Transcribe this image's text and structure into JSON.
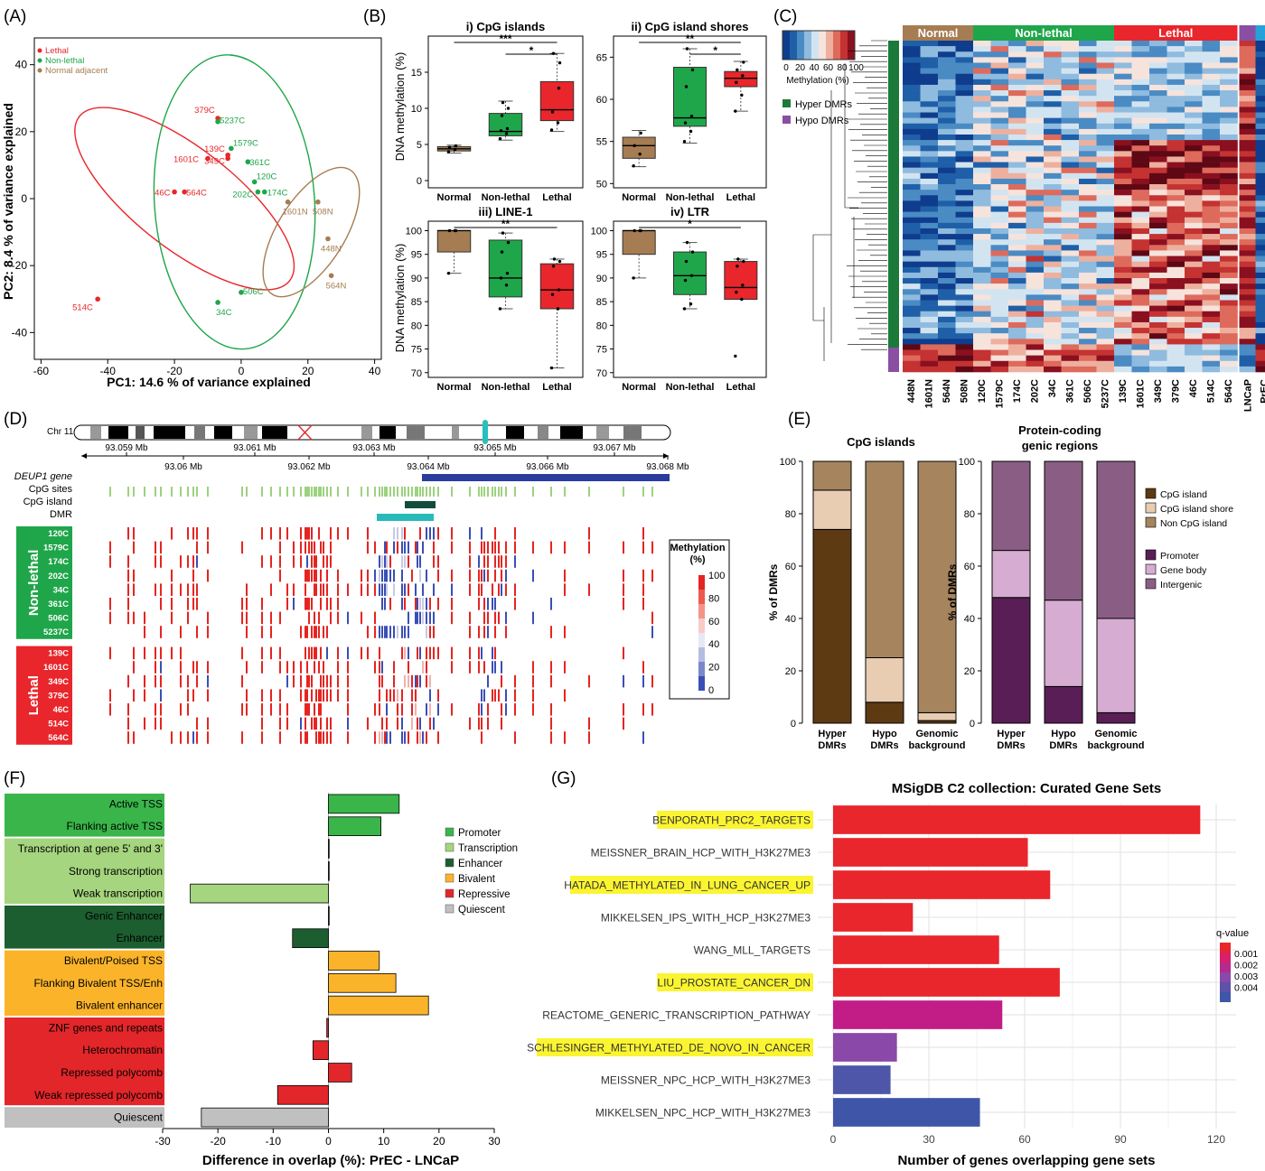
{
  "panels": {
    "A": {
      "label": "(A)",
      "xlabel": "PC1: 14.6 % of variance explained",
      "ylabel": "PC2: 8.4 % of variance explained",
      "xticks": [
        -60,
        -40,
        -20,
        0,
        20,
        40
      ],
      "yticks": [
        -40,
        -20,
        0,
        20,
        40
      ],
      "xlim": [
        -62,
        42
      ],
      "ylim": [
        -48,
        48
      ],
      "legend": [
        {
          "label": "Lethal",
          "color": "#e8262b"
        },
        {
          "label": "Non-lethal",
          "color": "#1fa64a"
        },
        {
          "label": "Normal adjacent",
          "color": "#a67c52"
        }
      ],
      "points": [
        {
          "name": "379C",
          "x": -7,
          "y": 24,
          "group": 0
        },
        {
          "name": "5237C",
          "x": -7,
          "y": 23,
          "group": 1
        },
        {
          "name": "139C",
          "x": -4,
          "y": 13,
          "group": 0
        },
        {
          "name": "1579C",
          "x": -3,
          "y": 15,
          "group": 1
        },
        {
          "name": "349C",
          "x": -4,
          "y": 12,
          "group": 0
        },
        {
          "name": "361C",
          "x": 2,
          "y": 11,
          "group": 1
        },
        {
          "name": "1601C",
          "x": -10,
          "y": 12,
          "group": 0
        },
        {
          "name": "46C",
          "x": -20,
          "y": 2,
          "group": 0
        },
        {
          "name": "564C",
          "x": -17,
          "y": 2,
          "group": 0
        },
        {
          "name": "120C",
          "x": 4,
          "y": 5,
          "group": 1
        },
        {
          "name": "202C",
          "x": 5,
          "y": 2,
          "group": 1
        },
        {
          "name": "174C",
          "x": 7,
          "y": 2,
          "group": 1
        },
        {
          "name": "1601N",
          "x": 14,
          "y": -1,
          "group": 2
        },
        {
          "name": "508N",
          "x": 23,
          "y": -1,
          "group": 2
        },
        {
          "name": "448N",
          "x": 26,
          "y": -12,
          "group": 2
        },
        {
          "name": "564N",
          "x": 27,
          "y": -23,
          "group": 2
        },
        {
          "name": "506C",
          "x": 0,
          "y": -28,
          "group": 1
        },
        {
          "name": "34C",
          "x": -7,
          "y": -31,
          "group": 1
        },
        {
          "name": "514C",
          "x": -43,
          "y": -30,
          "group": 0
        }
      ]
    },
    "B": {
      "label": "(B)",
      "ylabel": "DNA methylation (%)",
      "categories": [
        "Normal",
        "Non-lethal",
        "Lethal"
      ],
      "colors": [
        "#a67c52",
        "#1fa64a",
        "#e8262b"
      ],
      "subplots": [
        {
          "title": "i) CpG islands",
          "ylim": [
            -1,
            20
          ],
          "yticks": [
            0,
            5,
            10,
            15
          ],
          "boxes": [
            {
              "lo": 3.8,
              "q1": 4.1,
              "med": 4.4,
              "q3": 4.7,
              "hi": 4.9
            },
            {
              "lo": 5.6,
              "q1": 6.2,
              "med": 6.8,
              "q3": 9.3,
              "hi": 11.0
            },
            {
              "lo": 6.8,
              "q1": 8.3,
              "med": 9.8,
              "q3": 13.7,
              "hi": 17.6
            }
          ],
          "sig": [
            "***",
            "*"
          ]
        },
        {
          "title": "ii) CpG island shores",
          "ylim": [
            49.5,
            67.5
          ],
          "yticks": [
            50,
            55,
            60,
            65
          ],
          "boxes": [
            {
              "lo": 52.0,
              "q1": 53.0,
              "med": 54.5,
              "q3": 55.5,
              "hi": 56.3
            },
            {
              "lo": 54.8,
              "q1": 56.8,
              "med": 57.8,
              "q3": 63.8,
              "hi": 66.0
            },
            {
              "lo": 58.6,
              "q1": 61.5,
              "med": 62.5,
              "q3": 63.3,
              "hi": 64.5
            }
          ],
          "sig": [
            "**",
            "*"
          ]
        },
        {
          "title": "iii) LINE-1",
          "ylim": [
            69,
            102
          ],
          "yticks": [
            70,
            75,
            80,
            85,
            90,
            95,
            100
          ],
          "boxes": [
            {
              "lo": 91.0,
              "q1": 95.5,
              "med": 100.0,
              "q3": 100.0,
              "hi": 100.0
            },
            {
              "lo": 83.5,
              "q1": 86.0,
              "med": 90.0,
              "q3": 98.0,
              "hi": 99.5
            },
            {
              "lo": 71.0,
              "q1": 83.5,
              "med": 87.5,
              "q3": 93.0,
              "hi": 94.0
            }
          ],
          "sig": [
            "**"
          ]
        },
        {
          "title": "iv) LTR",
          "ylim": [
            69,
            102
          ],
          "yticks": [
            70,
            75,
            80,
            85,
            90,
            95,
            100
          ],
          "boxes": [
            {
              "lo": 90.0,
              "q1": 95.0,
              "med": 100.0,
              "q3": 100.0,
              "hi": 100.0
            },
            {
              "lo": 83.5,
              "q1": 86.5,
              "med": 90.5,
              "q3": 95.5,
              "hi": 97.5
            },
            {
              "lo": 85.5,
              "q1": 85.5,
              "med": 88.0,
              "q3": 93.5,
              "hi": 94.0
            }
          ],
          "sig": [
            "*"
          ]
        }
      ]
    },
    "C": {
      "label": "(C)",
      "scale_ticks": [
        "0",
        "20",
        "40",
        "60",
        "80",
        "100"
      ],
      "scale_title": "Methylation (%)",
      "legend": [
        {
          "label": "Hyper DMRs",
          "color": "#1b7a3a"
        },
        {
          "label": "Hypo DMRs",
          "color": "#8a4fa3"
        }
      ],
      "groups": [
        {
          "label": "Normal",
          "color": "#a67c52",
          "n": 4
        },
        {
          "label": "Non-lethal",
          "color": "#1fa64a",
          "n": 8
        },
        {
          "label": "Lethal",
          "color": "#e8262b",
          "n": 7
        }
      ],
      "samples": [
        "448N",
        "1601N",
        "564N",
        "508N",
        "120C",
        "1579C",
        "174C",
        "202C",
        "34C",
        "361C",
        "506C",
        "5237C",
        "139C",
        "1601C",
        "349C",
        "379C",
        "46C",
        "514C",
        "564C"
      ],
      "cell_lines": [
        "LNCaP",
        "PrEC"
      ]
    },
    "D": {
      "label": "(D)",
      "chrom": "Chr 11",
      "top_ticks": [
        "93.059 Mb",
        "93.061 Mb",
        "93.063 Mb",
        "93.065 Mb",
        "93.067 Mb"
      ],
      "bottom_ticks": [
        "93.06 Mb",
        "93.062 Mb",
        "93.064 Mb",
        "93.066 Mb",
        "93.068 Mb"
      ],
      "track_labels": [
        "DEUP1 gene",
        "CpG sites",
        "CpG island",
        "DMR"
      ],
      "groups": [
        {
          "label": "Non-lethal",
          "color": "#1fa64a",
          "samples": [
            "120C",
            "1579C",
            "174C",
            "202C",
            "34C",
            "361C",
            "506C",
            "5237C"
          ]
        },
        {
          "label": "Lethal",
          "color": "#e8262b",
          "samples": [
            "139C",
            "1601C",
            "349C",
            "379C",
            "46C",
            "514C",
            "564C"
          ]
        }
      ],
      "legend_title": "Methylation (%)",
      "legend_ticks": [
        "100",
        "80",
        "60",
        "40",
        "20",
        "0"
      ]
    },
    "E": {
      "label": "(E)",
      "ylabel": "% of DMRs",
      "yticks": [
        0,
        20,
        40,
        60,
        80,
        100
      ],
      "categories": [
        "Hyper DMRs",
        "Hypo DMRs",
        "Genomic background"
      ],
      "charts": [
        {
          "title": "CpG islands",
          "series": [
            {
              "name": "CpG island",
              "color": "#5e3a13",
              "values": [
                74,
                8,
                1
              ]
            },
            {
              "name": "CpG island shore",
              "color": "#e8cdb2",
              "values": [
                15,
                17,
                3
              ]
            },
            {
              "name": "Non CpG island",
              "color": "#a6845e",
              "values": [
                11,
                75,
                96
              ]
            }
          ]
        },
        {
          "title": "Protein-coding genic regions",
          "series": [
            {
              "name": "Promoter",
              "color": "#5a1e56",
              "values": [
                48,
                14,
                4
              ]
            },
            {
              "name": "Gene body",
              "color": "#d6acd2",
              "values": [
                18,
                33,
                36
              ]
            },
            {
              "name": "Intergenic",
              "color": "#8a5e84",
              "values": [
                34,
                53,
                60
              ]
            }
          ]
        }
      ]
    },
    "F": {
      "label": "(F)",
      "xlabel": "Difference in overlap (%): PrEC - LNCaP",
      "xticks": [
        -30,
        -20,
        -10,
        0,
        10,
        20,
        30
      ],
      "categories": [
        "Active TSS",
        "Flanking active TSS",
        "Transcription at gene 5' and 3'",
        "Strong transcription",
        "Weak transcription",
        "Genic Enhancer",
        "Enhancer",
        "Bivalent/Poised TSS",
        "Flanking Bivalent TSS/Enh",
        "Bivalent enhancer",
        "ZNF genes and repeats",
        "Heterochromatin",
        "Repressed polycomb",
        "Weak repressed polycomb",
        "Quiescent"
      ],
      "values": [
        12.8,
        9.5,
        0.1,
        0.1,
        -25,
        0.1,
        -6.5,
        9.2,
        12.2,
        18.1,
        -0.3,
        -2.8,
        4.2,
        -9.2,
        -23
      ],
      "cat_group": [
        0,
        0,
        1,
        1,
        1,
        2,
        2,
        3,
        3,
        3,
        4,
        4,
        4,
        4,
        5
      ],
      "legend": [
        {
          "name": "Promoter",
          "color": "#3ab54a"
        },
        {
          "name": "Transcription",
          "color": "#a5d57e"
        },
        {
          "name": "Enhancer",
          "color": "#1c5e30"
        },
        {
          "name": "Bivalent",
          "color": "#fbb42a"
        },
        {
          "name": "Repressive",
          "color": "#e3262a"
        },
        {
          "name": "Quiescent",
          "color": "#c0c0c0"
        }
      ]
    },
    "G": {
      "label": "(G)",
      "title": "MSigDB C2 collection: Curated Gene Sets",
      "xlabel": "Number of genes overlapping gene sets",
      "xticks": [
        0,
        30,
        60,
        90,
        120
      ],
      "categories": [
        "BENPORATH_PRC2_TARGETS",
        "MEISSNER_BRAIN_HCP_WITH_H3K27ME3",
        "HATADA_METHYLATED_IN_LUNG_CANCER_UP",
        "MIKKELSEN_IPS_WITH_HCP_H3K27ME3",
        "WANG_MLL_TARGETS",
        "LIU_PROSTATE_CANCER_DN",
        "REACTOME_GENERIC_TRANSCRIPTION_PATHWAY",
        "SCHLESINGER_METHYLATED_DE_NOVO_IN_CANCER",
        "MEISSNER_NPC_HCP_WITH_H3K27ME3",
        "MIKKELSEN_NPC_HCP_WITH_H3K27ME3"
      ],
      "values": [
        115,
        61,
        68,
        25,
        52,
        71,
        53,
        20,
        18,
        46
      ],
      "highlight": [
        true,
        false,
        true,
        false,
        false,
        true,
        false,
        true,
        false,
        false
      ],
      "colors": [
        "#e8262b",
        "#e8262b",
        "#e8262b",
        "#e8262b",
        "#e8262b",
        "#e8262b",
        "#c21d87",
        "#8a48a8",
        "#4d56a8",
        "#3f56a8"
      ],
      "legend_title": "q-value",
      "legend_ticks": [
        "0.001",
        "0.002",
        "0.003",
        "0.004"
      ]
    }
  }
}
